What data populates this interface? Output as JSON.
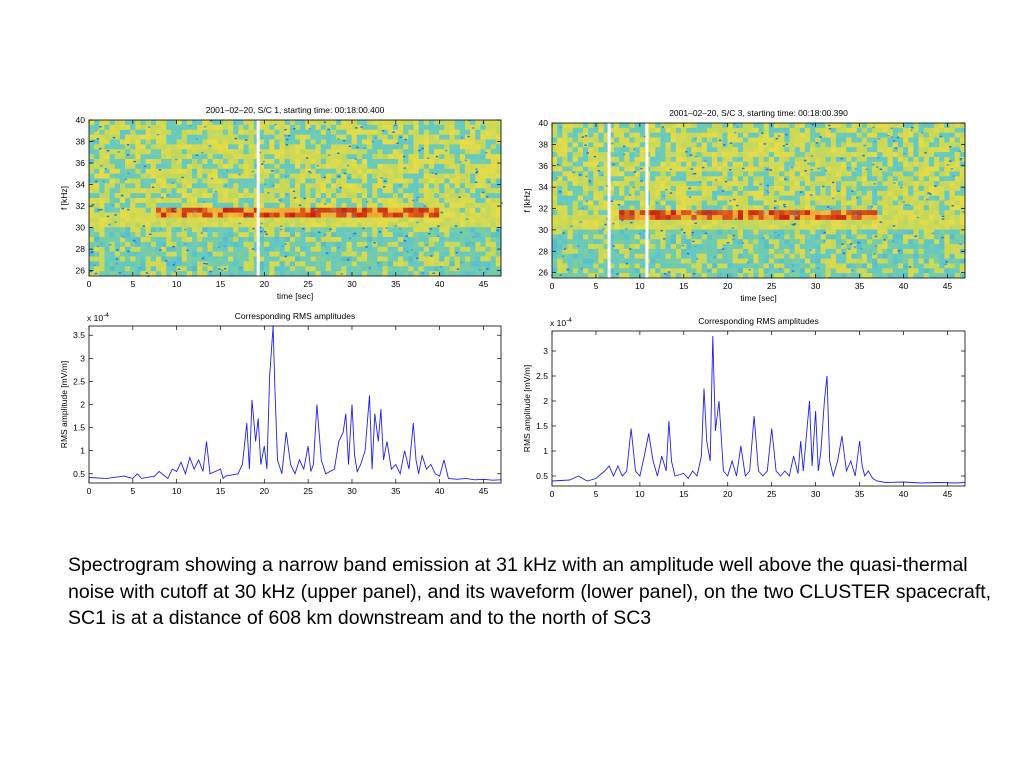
{
  "caption": "Spectrogram showing a narrow band emission at 31 kHz with an amplitude well above the quasi-thermal noise with cutoff at 30 kHz (upper panel), and its waveform (lower panel), on the two CLUSTER spacecraft, SC1 is at a distance of 608 km downstream and to the north of SC3",
  "chart_data": [
    {
      "type": "heatmap",
      "title": "2001–02–20, S/C 1, starting time: 00:18:00.400",
      "xlabel": "time [sec]",
      "ylabel": "f [kHz]",
      "xlim": [
        0,
        47
      ],
      "ylim": [
        25.5,
        40
      ],
      "xticks": [
        "0",
        "5",
        "10",
        "15",
        "20",
        "25",
        "30",
        "35",
        "40",
        "45"
      ],
      "yticks": [
        "26",
        "28",
        "30",
        "32",
        "34",
        "36",
        "38",
        "40"
      ],
      "band": {
        "frequency_khz": 31.5,
        "time_start": 7.5,
        "time_end": 40
      },
      "cutoff_khz": 30,
      "data_gaps_sec": [
        19.3
      ],
      "colors": {
        "band": "#c81e0f",
        "noise": "#64c8c8",
        "high": "#e8dc46"
      }
    },
    {
      "type": "heatmap",
      "title": "2001–02–20, S/C 3, starting time: 00:18:00.390",
      "xlabel": "time [sec]",
      "ylabel": "f [kHz]",
      "xlim": [
        0,
        47
      ],
      "ylim": [
        25.5,
        40
      ],
      "xticks": [
        "0",
        "5",
        "10",
        "15",
        "20",
        "25",
        "30",
        "35",
        "40",
        "45"
      ],
      "yticks": [
        "26",
        "28",
        "30",
        "32",
        "34",
        "36",
        "38",
        "40"
      ],
      "band": {
        "frequency_khz": 31.3,
        "time_start": 7.5,
        "time_end": 37
      },
      "cutoff_khz": 30,
      "data_gaps_sec": [
        6.5,
        10.8
      ],
      "colors": {
        "band": "#c81e0f",
        "noise": "#64c8c8",
        "high": "#e8dc46"
      }
    },
    {
      "type": "line",
      "title": "Corresponding RMS amplitudes",
      "xlabel": "",
      "ylabel": "RMS amplitude [mV/m]",
      "scale_label": "x 10",
      "scale_exponent": "-4",
      "xlim": [
        0,
        47
      ],
      "ylim": [
        0.3,
        3.7
      ],
      "xticks": [
        "0",
        "5",
        "10",
        "15",
        "20",
        "25",
        "30",
        "35",
        "40",
        "45"
      ],
      "yticks": [
        "0.5",
        "1",
        "1.5",
        "2",
        "2.5",
        "3",
        "3.5"
      ],
      "color": "#2020ee",
      "series": [
        {
          "x": [
            0,
            2,
            4,
            5,
            5.5,
            6,
            7.5,
            8,
            9,
            9.5,
            10,
            10.5,
            11,
            11.5,
            12,
            12.5,
            13,
            13.4,
            13.8,
            15,
            15.3,
            15.6,
            17,
            17.5,
            18,
            18.3,
            18.6,
            19,
            19.3,
            19.6,
            20,
            20.3,
            20.6,
            21,
            21.2,
            21.5,
            22,
            22.5,
            23,
            23.5,
            24,
            24.5,
            25,
            25.3,
            25.6,
            26,
            26.5,
            27,
            28,
            28.5,
            29,
            29.3,
            29.6,
            30,
            30.3,
            30.6,
            31,
            31.5,
            32,
            32.3,
            32.6,
            33,
            33.3,
            33.6,
            34,
            34.5,
            35,
            35.5,
            36,
            36.5,
            37,
            37.3,
            37.6,
            38,
            38.5,
            39,
            39.5,
            40,
            40.5,
            41,
            42,
            43,
            44,
            45,
            46,
            47
          ],
          "y": [
            0.42,
            0.4,
            0.45,
            0.4,
            0.5,
            0.4,
            0.45,
            0.55,
            0.4,
            0.6,
            0.55,
            0.75,
            0.5,
            0.85,
            0.6,
            0.8,
            0.55,
            1.2,
            0.5,
            0.6,
            0.4,
            0.45,
            0.5,
            0.7,
            1.6,
            0.6,
            2.1,
            1.2,
            1.7,
            0.7,
            1.1,
            0.6,
            2.6,
            3.7,
            2.4,
            0.8,
            0.5,
            1.4,
            0.7,
            0.5,
            0.8,
            0.6,
            1.1,
            0.55,
            0.7,
            2.0,
            0.8,
            0.5,
            0.6,
            1.2,
            1.4,
            1.8,
            0.7,
            2.0,
            0.9,
            0.55,
            0.7,
            1.0,
            2.2,
            0.6,
            1.8,
            1.2,
            1.9,
            0.8,
            1.2,
            0.6,
            0.7,
            0.5,
            1.0,
            0.6,
            1.6,
            0.8,
            0.5,
            0.9,
            0.6,
            0.7,
            0.5,
            0.45,
            0.8,
            0.4,
            0.38,
            0.4,
            0.37,
            0.38,
            0.36,
            0.37
          ]
        }
      ]
    },
    {
      "type": "line",
      "title": "Corresponding RMS amplitudes",
      "xlabel": "",
      "ylabel": "RMS amplitude [mV/m]",
      "scale_label": "x 10",
      "scale_exponent": "-4",
      "xlim": [
        0,
        47
      ],
      "ylim": [
        0.3,
        3.4
      ],
      "xticks": [
        "0",
        "5",
        "10",
        "15",
        "20",
        "25",
        "30",
        "35",
        "40",
        "45"
      ],
      "yticks": [
        "0.5",
        "1",
        "1.5",
        "2",
        "2.5",
        "3"
      ],
      "color": "#2020ee",
      "series": [
        {
          "x": [
            0,
            2,
            3,
            4,
            5,
            6,
            6.5,
            7,
            7.5,
            8,
            8.5,
            9,
            9.5,
            10,
            10.5,
            11,
            11.5,
            12,
            12.5,
            13,
            13.3,
            13.6,
            14,
            15,
            15.5,
            16,
            16.5,
            17,
            17.3,
            17.6,
            18,
            18.3,
            18.6,
            19,
            19.5,
            20,
            20.5,
            21,
            21.5,
            22,
            22.5,
            23,
            23.5,
            24,
            24.5,
            25,
            25.5,
            26,
            26.5,
            27,
            27.5,
            28,
            28.3,
            28.6,
            29,
            29.3,
            29.6,
            30,
            30.3,
            30.6,
            31,
            31.3,
            31.6,
            32,
            32.5,
            33,
            33.5,
            34,
            34.5,
            35,
            35.3,
            35.6,
            36,
            36.5,
            37,
            38,
            40,
            42,
            44,
            46,
            47
          ],
          "y": [
            0.4,
            0.42,
            0.5,
            0.4,
            0.45,
            0.6,
            0.7,
            0.5,
            0.7,
            0.5,
            0.6,
            1.45,
            0.6,
            0.5,
            0.9,
            1.35,
            0.8,
            0.5,
            0.9,
            0.6,
            1.6,
            0.8,
            0.5,
            0.55,
            0.45,
            0.6,
            0.5,
            0.9,
            2.25,
            1.2,
            0.8,
            3.3,
            1.4,
            2.0,
            0.6,
            0.5,
            0.8,
            0.5,
            1.1,
            0.5,
            0.6,
            1.7,
            0.6,
            0.5,
            0.6,
            1.45,
            0.6,
            0.5,
            0.6,
            0.5,
            0.9,
            0.55,
            1.2,
            0.6,
            1.4,
            2.0,
            0.7,
            1.8,
            0.6,
            1.0,
            2.0,
            2.5,
            0.8,
            0.5,
            0.8,
            1.3,
            0.6,
            0.8,
            0.5,
            1.2,
            0.7,
            0.5,
            0.6,
            0.45,
            0.4,
            0.37,
            0.38,
            0.36,
            0.37,
            0.36,
            0.37
          ]
        }
      ]
    }
  ]
}
